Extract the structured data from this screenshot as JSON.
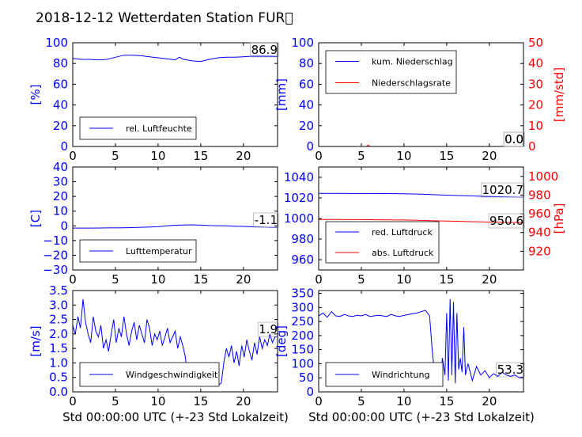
{
  "title": "2018-12-12 Wetterdaten Station FUR\u0000",
  "xlabel": "Std 00:00:00 UTC (+-23 Std Lokalzeit)",
  "colors": {
    "primary": "#0000ff",
    "secondary": "#ff0000",
    "axis": "#000000"
  },
  "chart_data": [
    {
      "type": "line",
      "panel": "humidity",
      "ylabel": "[%]",
      "ylim": [
        0,
        100
      ],
      "yticks": [
        0,
        20,
        40,
        60,
        80,
        100
      ],
      "xlim": [
        0,
        24
      ],
      "xticks": [
        0,
        5,
        10,
        15,
        20
      ],
      "last_value": "86.9",
      "legend_position": "lower-left",
      "series": [
        {
          "name": "rel. Luftfeuchte",
          "color": "#0000ff",
          "x": [
            0,
            1,
            2,
            3,
            4,
            5,
            6,
            7,
            8,
            9,
            10,
            11,
            12,
            12.5,
            13,
            14,
            15,
            16,
            17,
            18,
            19,
            20,
            21,
            22,
            23,
            24
          ],
          "y": [
            85,
            84,
            84,
            83.5,
            84,
            86,
            88,
            88,
            87.5,
            86.5,
            85.5,
            84.5,
            83.5,
            86,
            84,
            82.5,
            82,
            84,
            85.5,
            86,
            86,
            86.5,
            87,
            87,
            87,
            86.9
          ]
        }
      ]
    },
    {
      "type": "line",
      "panel": "precipitation",
      "ylabel": "[mm]",
      "ylabel_right": "[mm/std]",
      "ylim": [
        0,
        100
      ],
      "ylim_right": [
        0,
        50
      ],
      "yticks": [
        0,
        20,
        40,
        60,
        80,
        100
      ],
      "yticks_right": [
        0,
        10,
        20,
        30,
        40,
        50
      ],
      "xlim": [
        0,
        24
      ],
      "xticks": [
        0,
        5,
        10,
        15,
        20
      ],
      "last_value": "0.0",
      "last_value_right": "0.0",
      "legend_position": "upper-left",
      "series": [
        {
          "name": "kum. Niederschlag",
          "color": "#0000ff",
          "axis": "left",
          "x": [
            0,
            24
          ],
          "y": [
            0,
            0
          ]
        },
        {
          "name": "Niederschlagsrate",
          "color": "#ff0000",
          "axis": "right",
          "x": [
            0,
            5.6,
            5.8,
            6,
            24
          ],
          "y": [
            0,
            0,
            0.6,
            0,
            0
          ]
        }
      ]
    },
    {
      "type": "line",
      "panel": "temperature",
      "ylabel": "[C]",
      "ylim": [
        -30,
        40
      ],
      "yticks": [
        -30,
        -20,
        -10,
        0,
        10,
        20,
        30,
        40
      ],
      "xlim": [
        0,
        24
      ],
      "xticks": [
        0,
        5,
        10,
        15,
        20
      ],
      "last_value": "-1.1",
      "legend_position": "lower-left",
      "series": [
        {
          "name": "Lufttemperatur",
          "color": "#0000ff",
          "x": [
            0,
            2,
            4,
            6,
            8,
            10,
            11,
            12,
            13,
            14,
            15,
            16,
            17,
            18,
            19,
            20,
            21,
            22,
            23,
            24
          ],
          "y": [
            -1.5,
            -1.5,
            -1.4,
            -1.3,
            -1,
            -0.6,
            0,
            0.4,
            0.6,
            0.7,
            0.5,
            0.2,
            0.1,
            0,
            -0.2,
            -0.4,
            -0.6,
            -0.8,
            -1,
            -1.1
          ]
        }
      ]
    },
    {
      "type": "line",
      "panel": "pressure",
      "ylabel": "",
      "ylabel_right": "[hPa]",
      "ylim": [
        950,
        1050
      ],
      "ylim_right": [
        900,
        1010
      ],
      "yticks": [
        960,
        980,
        1000,
        1020,
        1040
      ],
      "yticks_right": [
        920,
        940,
        960,
        980,
        1000
      ],
      "xlim": [
        0,
        24
      ],
      "xticks": [
        0,
        5,
        10,
        15,
        20
      ],
      "last_value": "1020.7",
      "last_value_right": "950.6",
      "legend_position": "lower-left",
      "series": [
        {
          "name": "red. Luftdruck",
          "color": "#0000ff",
          "axis": "left",
          "x": [
            0,
            2,
            4,
            6,
            8,
            10,
            12,
            14,
            16,
            18,
            20,
            22,
            24
          ],
          "y": [
            1024.5,
            1024.5,
            1024.3,
            1024.3,
            1024.2,
            1024,
            1023.6,
            1023,
            1022.4,
            1021.9,
            1021.4,
            1021,
            1020.7
          ]
        },
        {
          "name": "abs. Luftdruck",
          "color": "#ff0000",
          "axis": "right",
          "x": [
            0,
            2,
            4,
            6,
            8,
            10,
            12,
            14,
            16,
            18,
            20,
            22,
            24
          ],
          "y": [
            953.9,
            953.9,
            953.8,
            953.7,
            953.6,
            953.4,
            953,
            952.5,
            952,
            951.6,
            951.2,
            950.9,
            950.6
          ]
        }
      ]
    },
    {
      "type": "line",
      "panel": "wind-speed",
      "ylabel": "[m/s]",
      "ylim": [
        0,
        3.5
      ],
      "yticks": [
        0.0,
        0.5,
        1.0,
        1.5,
        2.0,
        2.5,
        3.0,
        3.5
      ],
      "ytick_labels": [
        "0.0",
        "0.5",
        "1.0",
        "1.5",
        "2.0",
        "2.5",
        "3.0",
        "3.5"
      ],
      "xlim": [
        0,
        24
      ],
      "xticks": [
        0,
        5,
        10,
        15,
        20
      ],
      "last_value": "1.9",
      "legend_position": "lower-left",
      "series": [
        {
          "name": "Windgeschwindigkeit",
          "color": "#0000ff",
          "x": [
            0,
            0.3,
            0.6,
            0.9,
            1.2,
            1.5,
            1.8,
            2.1,
            2.4,
            2.7,
            3.0,
            3.3,
            3.6,
            3.9,
            4.2,
            4.5,
            4.8,
            5.1,
            5.4,
            5.7,
            6.0,
            6.3,
            6.6,
            6.9,
            7.2,
            7.5,
            7.8,
            8.1,
            8.4,
            8.7,
            9.0,
            9.3,
            9.6,
            9.9,
            10.2,
            10.5,
            10.8,
            11.1,
            11.4,
            11.7,
            12.0,
            12.3,
            12.6,
            12.9,
            13.2,
            13.5,
            13.8,
            14.1,
            14.4,
            14.7,
            15.0,
            15.3,
            15.6,
            15.9,
            16.2,
            16.5,
            16.8,
            17.1,
            17.4,
            17.7,
            18.0,
            18.3,
            18.6,
            18.9,
            19.2,
            19.5,
            19.8,
            20.1,
            20.4,
            20.7,
            21.0,
            21.3,
            21.6,
            21.9,
            22.2,
            22.5,
            22.8,
            23.1,
            23.4,
            23.7,
            24.0
          ],
          "y": [
            2.3,
            2.0,
            2.6,
            2.2,
            3.2,
            2.4,
            2.0,
            1.7,
            2.6,
            2.1,
            1.9,
            2.3,
            1.5,
            1.8,
            1.4,
            2.0,
            2.5,
            1.7,
            2.2,
            1.9,
            2.6,
            2.0,
            1.6,
            2.1,
            2.4,
            1.8,
            2.3,
            2.0,
            1.7,
            2.5,
            2.2,
            1.6,
            2.0,
            1.8,
            2.1,
            1.6,
            1.9,
            2.2,
            1.7,
            1.9,
            2.1,
            1.5,
            1.9,
            1.6,
            1.2,
            0.4,
            0.7,
            0.3,
            0.6,
            0.4,
            0.2,
            0.5,
            0.3,
            0.4,
            0.2,
            0.3,
            0.2,
            0.25,
            0.3,
            1.0,
            1.5,
            1.2,
            1.6,
            1.0,
            1.4,
            0.9,
            1.6,
            1.2,
            1.8,
            1.4,
            1.1,
            1.7,
            1.3,
            1.9,
            1.5,
            1.8,
            1.6,
            2.0,
            1.7,
            1.9,
            1.9
          ]
        }
      ]
    },
    {
      "type": "line",
      "panel": "wind-direction",
      "ylabel": "[deg]",
      "ylim": [
        0,
        360
      ],
      "yticks": [
        0,
        50,
        100,
        150,
        200,
        250,
        300,
        350
      ],
      "xlim": [
        0,
        24
      ],
      "xticks": [
        0,
        5,
        10,
        15,
        20
      ],
      "last_value": "53.3",
      "legend_position": "lower-left",
      "series": [
        {
          "name": "Windrichtung",
          "color": "#0000ff",
          "x": [
            0,
            0.5,
            1.0,
            1.5,
            2.0,
            2.5,
            3.0,
            3.5,
            4.0,
            4.5,
            5.0,
            5.5,
            6.0,
            6.5,
            7.0,
            7.5,
            8.0,
            8.5,
            9.0,
            9.5,
            10.0,
            10.5,
            11.0,
            11.5,
            12.0,
            12.5,
            13.0,
            13.3,
            13.6,
            13.9,
            14.2,
            14.5,
            14.8,
            15.0,
            15.2,
            15.4,
            15.6,
            15.8,
            16.0,
            16.2,
            16.4,
            16.6,
            16.8,
            17.0,
            17.2,
            17.5,
            18.0,
            18.5,
            19.0,
            19.5,
            20.0,
            20.5,
            21.0,
            21.5,
            22.0,
            22.5,
            23.0,
            23.5,
            24.0
          ],
          "y": [
            270,
            280,
            265,
            285,
            270,
            268,
            275,
            270,
            268,
            272,
            270,
            275,
            268,
            270,
            272,
            270,
            268,
            275,
            270,
            268,
            272,
            275,
            278,
            280,
            285,
            290,
            270,
            150,
            60,
            100,
            40,
            120,
            60,
            280,
            40,
            330,
            60,
            320,
            30,
            280,
            80,
            120,
            70,
            230,
            60,
            100,
            40,
            90,
            60,
            75,
            50,
            65,
            55,
            70,
            60,
            55,
            60,
            50,
            53
          ]
        }
      ]
    }
  ]
}
